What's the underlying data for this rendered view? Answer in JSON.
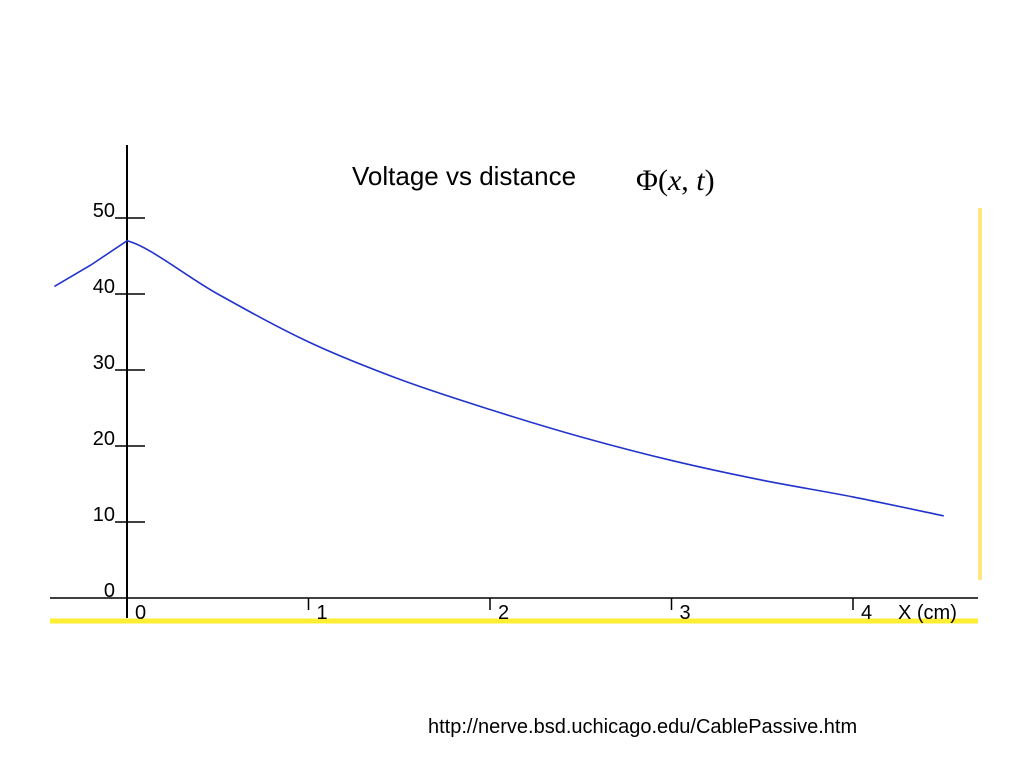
{
  "chart_data": {
    "type": "line",
    "title": "Voltage vs distance",
    "formula": {
      "symbol": "Φ",
      "open": "(",
      "var1": "x",
      "sep": ", ",
      "var2": "t",
      "close": ")"
    },
    "xlabel": "X (cm)",
    "ylabel": "",
    "xlim": [
      -0.4,
      4.6
    ],
    "ylim": [
      0,
      56
    ],
    "x_ticks": [
      "0",
      "1",
      "2",
      "3",
      "4"
    ],
    "y_ticks": [
      "0",
      "10",
      "20",
      "30",
      "40",
      "50"
    ],
    "grid": false,
    "series": [
      {
        "color": "#2233cc",
        "x": [
          -0.4,
          -0.2,
          0,
          0.5,
          1,
          1.5,
          2,
          2.5,
          3,
          3.5,
          4,
          4.5
        ],
        "y": [
          41,
          43.8,
          47,
          40,
          33.7,
          28.8,
          24.8,
          21.2,
          18.1,
          15.5,
          13.3,
          10.8
        ]
      }
    ]
  },
  "colors": {
    "axis": "#000000",
    "baseline_highlight": "#ffee33",
    "right_edge_highlight": "#ffe680"
  },
  "footer": {
    "source_url": "http://nerve.bsd.uchicago.edu/CablePassive.htm"
  }
}
